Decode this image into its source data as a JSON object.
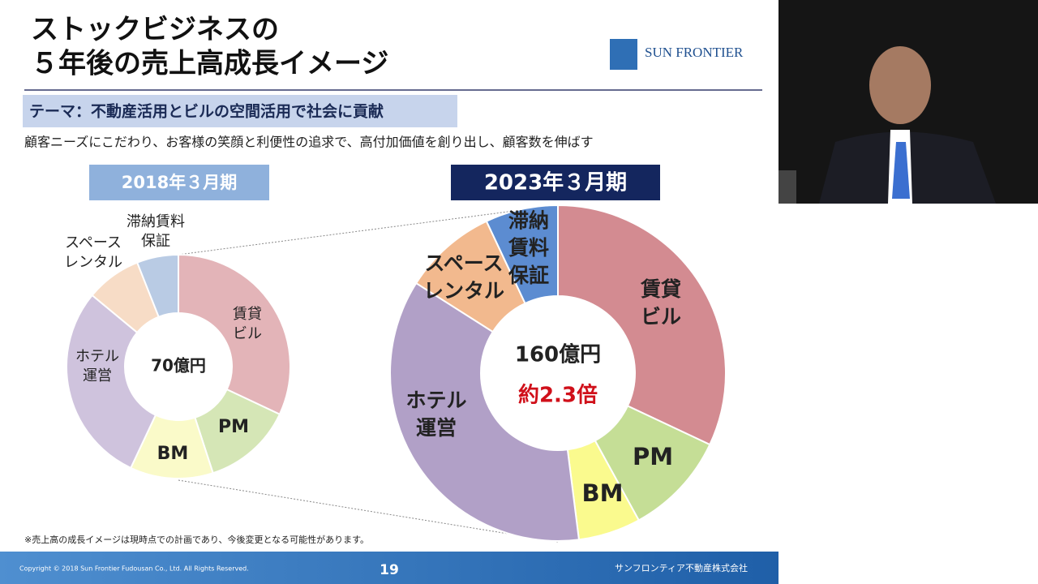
{
  "slide": {
    "title": [
      "ストックビジネスの",
      "５年後の売上高成長イメージ"
    ],
    "logo": "SUN FRONTIER",
    "theme": "テーマ：不動産活用とビルの空間活用で社会に貢献",
    "lead": "顧客ニーズにこだわり、お客様の笑顔と利便性の追求で、高付加価値を創り出し、顧客数を伸ばす",
    "footnote": "※売上高の成長イメージは現時点での計画であり、今後変更となる可能性があります。",
    "copyright": "Copyright © 2018 Sun Frontier Fudousan Co., Ltd. All Rights Reserved.",
    "page": "19",
    "company": "サンフロンティア不動産株式会社"
  },
  "chart_data": [
    {
      "type": "pie",
      "title": "2018年３月期",
      "center_label": "70億円",
      "categories": [
        "賃貸\nビル",
        "PM",
        "BM",
        "ホテル\n運営",
        "スペース\nレンタル",
        "滞納賃料\n保証"
      ],
      "values": [
        32,
        13,
        12,
        29,
        8,
        6
      ],
      "colors": [
        "#e3b4b8",
        "#d5e6b6",
        "#fafac9",
        "#cfc3dd",
        "#f7dcc6",
        "#b9cbe4"
      ]
    },
    {
      "type": "pie",
      "title": "2023年３月期",
      "center_label": "160億円",
      "annotation": "約2.3倍",
      "categories": [
        "賃貸\nビル",
        "PM",
        "BM",
        "ホテル\n運営",
        "スペース\nレンタル",
        "滞納\n賃料\n保証"
      ],
      "values": [
        32,
        10,
        6,
        36,
        9,
        7
      ],
      "colors": [
        "#d38b91",
        "#c5de96",
        "#fafa8e",
        "#b1a0c7",
        "#f2b98e",
        "#5c8cd1"
      ]
    }
  ]
}
